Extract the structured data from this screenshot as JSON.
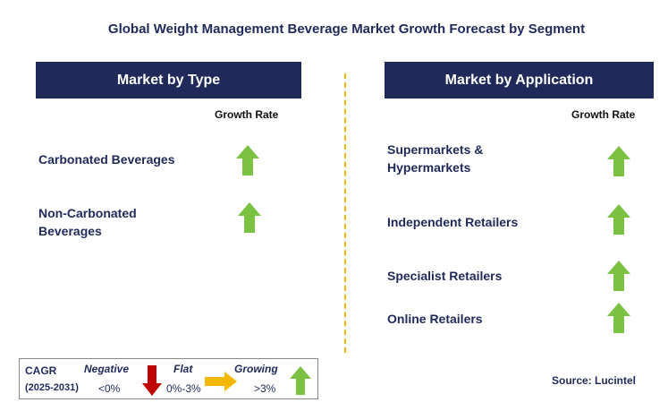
{
  "title": "Global Weight Management Beverage Market Growth Forecast by Segment",
  "left_panel": {
    "header": "Market by Type",
    "growth_label": "Growth Rate",
    "segments": [
      {
        "label_lines": [
          "Carbonated Beverages"
        ],
        "trend": "growing"
      },
      {
        "label_lines": [
          "Non-Carbonated",
          "Beverages"
        ],
        "trend": "growing"
      }
    ]
  },
  "right_panel": {
    "header": "Market by Application",
    "growth_label": "Growth Rate",
    "segments": [
      {
        "label_lines": [
          "Supermarkets &",
          "Hypermarkets"
        ],
        "trend": "growing"
      },
      {
        "label_lines": [
          "Independent Retailers"
        ],
        "trend": "growing"
      },
      {
        "label_lines": [
          "Specialist Retailers"
        ],
        "trend": "growing"
      },
      {
        "label_lines": [
          "Online Retailers"
        ],
        "trend": "growing"
      }
    ]
  },
  "legend": {
    "cagr": "CAGR",
    "period": "(2025-2031)",
    "negative_label": "Negative",
    "negative_value": "<0%",
    "flat_label": "Flat",
    "flat_value": "0%-3%",
    "growing_label": "Growing",
    "growing_value": ">3%"
  },
  "source": "Source: Lucintel",
  "colors": {
    "header_bg": "#1f2a5a",
    "arrow_up": "#7cc242",
    "arrow_down": "#c00000",
    "arrow_flat": "#f5b800",
    "divider": "#f2b800"
  },
  "icons": {
    "up": "green-up-arrow-icon",
    "down": "red-down-arrow-icon",
    "flat": "yellow-right-arrow-icon"
  }
}
